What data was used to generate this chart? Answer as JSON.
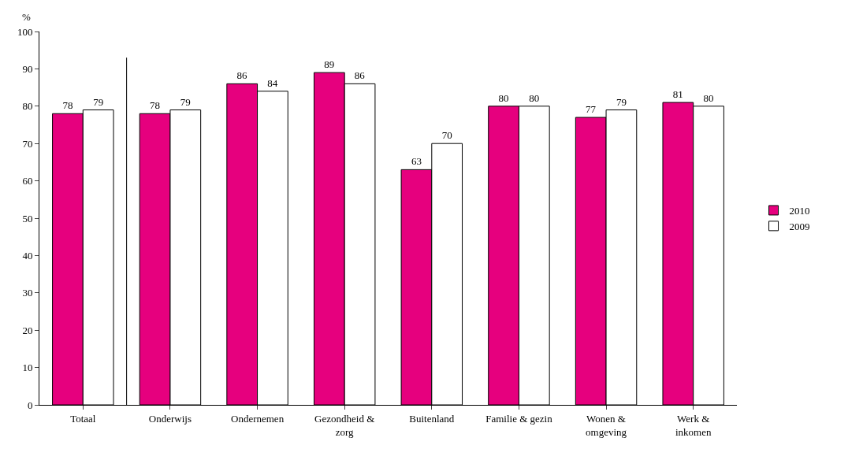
{
  "chart_data": {
    "type": "bar",
    "ylabel": "%",
    "categories": [
      "Totaal",
      "Onderwijs",
      "Ondernemen",
      "Gezondheid &\nzorg",
      "Buitenland",
      "Familie & gezin",
      "Wonen &\nomgeving",
      "Werk &\ninkomen"
    ],
    "series": [
      {
        "name": "2010",
        "color": "#e6007e",
        "values": [
          78,
          78,
          86,
          89,
          63,
          80,
          77,
          81
        ]
      },
      {
        "name": "2009",
        "color": "#ffffff",
        "values": [
          79,
          79,
          84,
          86,
          70,
          80,
          79,
          80
        ]
      }
    ],
    "ylim": [
      0,
      100
    ],
    "yticks": [
      0,
      10,
      20,
      30,
      40,
      50,
      60,
      70,
      80,
      90,
      100
    ],
    "data_labels": true,
    "grid": false,
    "legend": "right"
  }
}
